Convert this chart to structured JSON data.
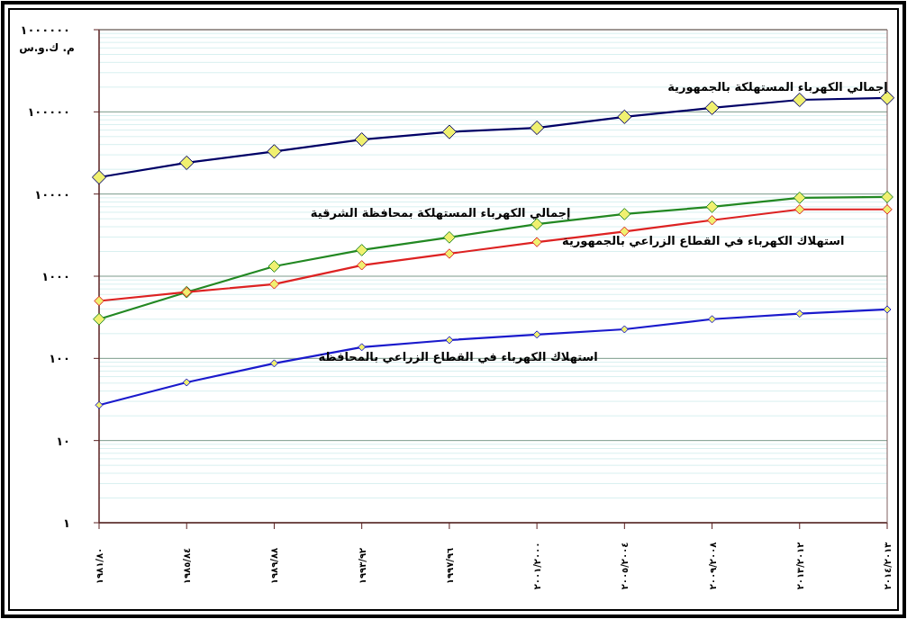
{
  "chart_data": {
    "type": "line",
    "ylabel": "م. ك.و.س",
    "categories": [
      "١٩٨١/٨٠",
      "١٩٨٥/٨٤",
      "١٩٨٩/٨٨",
      "١٩٩٣/٩٢",
      "١٩٩٧/٩٦",
      "٢٠٠١/٢٠٠٠",
      "٢٠٠٥/٢٠٠٤",
      "٢٠٠٩/٢٠٠٨",
      "٢٠١٣/٢٠١٢",
      "٢٠١٤/٢٠١٣"
    ],
    "log": true,
    "ylim": [
      1,
      1000000
    ],
    "yticks": [
      {
        "value": 1,
        "label": "١"
      },
      {
        "value": 10,
        "label": "١٠"
      },
      {
        "value": 100,
        "label": "١٠٠"
      },
      {
        "value": 1000,
        "label": "١٠٠٠"
      },
      {
        "value": 10000,
        "label": "١٠٠٠٠"
      },
      {
        "value": 100000,
        "label": "١٠٠٠٠٠"
      },
      {
        "value": 1000000,
        "label": "١٠٠٠٠٠٠"
      }
    ],
    "grid": "y",
    "marker": "diamond",
    "line_style": "solid",
    "series": [
      {
        "name": "إجمالي الكهرباء المستهلكة بالجمهورية",
        "color": "#000066",
        "values": [
          16000,
          24000,
          33000,
          46000,
          57000,
          64000,
          87000,
          112000,
          140000,
          148000
        ]
      },
      {
        "name": "إجمالي الكهرباء المستهلكة بمحافظة الشرقية",
        "color": "#228822",
        "values": [
          300,
          640,
          1320,
          2080,
          2970,
          4300,
          5700,
          7000,
          9000,
          9200
        ]
      },
      {
        "name": "استهلاك الكهرباء في القطاع الزراعي بالجمهورية",
        "color": "#dd2222",
        "values": [
          500,
          640,
          800,
          1360,
          1880,
          2600,
          3500,
          4800,
          6500,
          6500
        ]
      },
      {
        "name": "استهلاك الكهرباء في القطاع الزراعي بالمحافظة",
        "color": "#1a1acc",
        "values": [
          27,
          51,
          87,
          137,
          167,
          195,
          226,
          300,
          350,
          394
        ]
      }
    ]
  }
}
